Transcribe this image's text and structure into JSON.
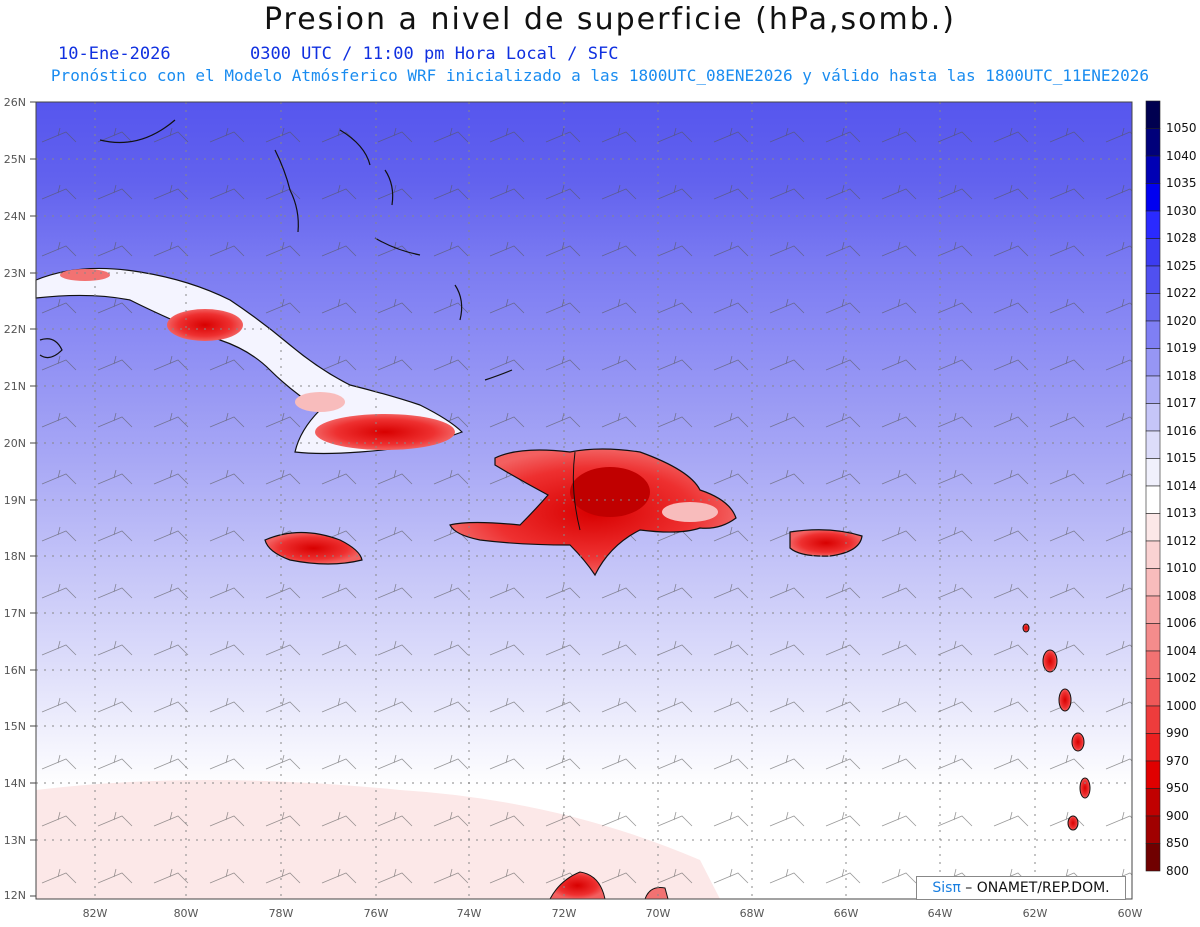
{
  "title": "Presion a nivel de superficie (hPa,somb.)",
  "date": "10-Ene-2026",
  "time": "0300 UTC / 11:00 pm Hora Local / SFC",
  "forecast_line": "Pronóstico con el Modelo Atmósferico WRF inicializado a las 1800UTC_08ENE2026 y válido hasta las  1800UTC_11ENE2026",
  "credit": {
    "brand": "Sisπ",
    "org": " – ONAMET/REP.DOM."
  },
  "lat_labels": [
    "26N",
    "25N",
    "24N",
    "23N",
    "22N",
    "21N",
    "20N",
    "19N",
    "18N",
    "17N",
    "16N",
    "15N",
    "14N",
    "13N",
    "12N"
  ],
  "lon_labels": [
    "82W",
    "80W",
    "78W",
    "76W",
    "74W",
    "72W",
    "70W",
    "68W",
    "66W",
    "64W",
    "62W",
    "60W"
  ],
  "colorbar": {
    "levels": [
      "1050",
      "1040",
      "1035",
      "1030",
      "1028",
      "1025",
      "1022",
      "1020",
      "1019",
      "1018",
      "1017",
      "1016",
      "1015",
      "1014",
      "1013",
      "1012",
      "1010",
      "1008",
      "1006",
      "1004",
      "1002",
      "1000",
      "990",
      "970",
      "950",
      "900",
      "850",
      "800"
    ],
    "colors": [
      "#000050",
      "#00007a",
      "#0000b4",
      "#0000f0",
      "#2a2aff",
      "#3c3cf2",
      "#5050f0",
      "#6666f0",
      "#7f7ff4",
      "#9696f4",
      "#aeaef6",
      "#c6c6f8",
      "#dcdcfa",
      "#f0f0fc",
      "#ffffff",
      "#fce8e8",
      "#fad2d2",
      "#f8bcbc",
      "#f6a4a4",
      "#f48c8c",
      "#f27272",
      "#f05858",
      "#ee3c3c",
      "#ec2020",
      "#e00000",
      "#c00000",
      "#a00000",
      "#700000"
    ]
  }
}
